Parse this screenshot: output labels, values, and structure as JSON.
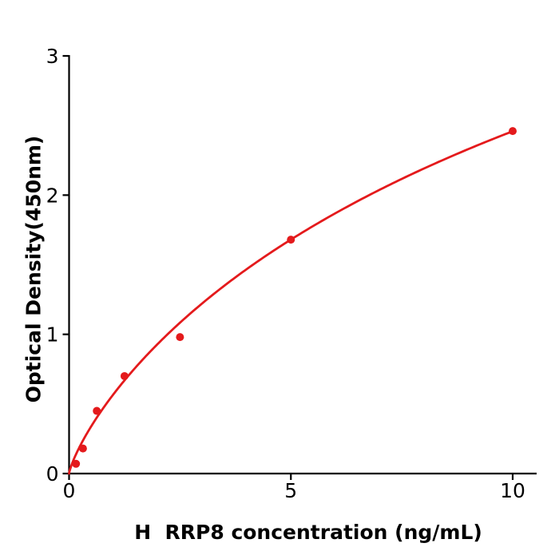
{
  "chart_data": {
    "type": "scatter",
    "title": "",
    "xlabel": "H  RRP8 concentration (ng/mL)",
    "ylabel": "Optical Density(450nm)",
    "x": [
      0.156,
      0.313,
      0.625,
      1.25,
      2.5,
      5,
      10
    ],
    "y": [
      0.07,
      0.18,
      0.45,
      0.7,
      0.98,
      1.68,
      2.46
    ],
    "xlim": [
      0,
      10.54
    ],
    "ylim": [
      0,
      3
    ],
    "xticks": [
      0,
      5,
      10
    ],
    "xtick_labels": [
      "0",
      "5",
      "10"
    ],
    "yticks": [
      0,
      1,
      2,
      3
    ],
    "ytick_labels": [
      "0",
      "1",
      "2",
      "3"
    ],
    "grid": false,
    "legend": "none",
    "fit_curve": {
      "model": "hill",
      "formula": "y = vmax * x^b / (k + x^b)",
      "vmax": 6.55,
      "k": 10.5,
      "b": 0.8,
      "x_range": [
        0,
        10
      ]
    },
    "marker": {
      "shape": "circle",
      "radius_px": 5
    },
    "colors": {
      "points": "#e41a1c",
      "curve": "#e41a1c",
      "axis": "#000000",
      "text": "#000000",
      "background": "#ffffff"
    }
  }
}
